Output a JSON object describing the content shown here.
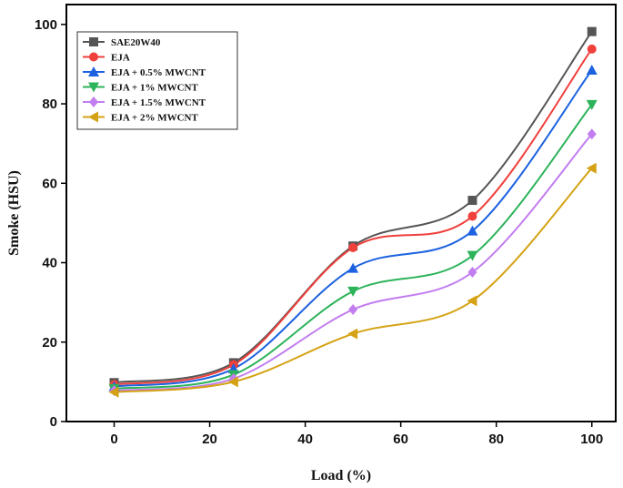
{
  "chart_data": {
    "type": "line",
    "xlabel": "Load (%)",
    "ylabel": "Smoke (HSU)",
    "xlim": [
      -10,
      105
    ],
    "ylim": [
      0,
      105
    ],
    "xticks": [
      0,
      20,
      40,
      60,
      80,
      100
    ],
    "yticks": [
      0,
      20,
      40,
      60,
      80,
      100
    ],
    "x": [
      0,
      25,
      50,
      75,
      100
    ],
    "legend_position": "top-left",
    "series": [
      {
        "name": "SAE20W40",
        "color": "#555555",
        "marker": "square",
        "values": [
          9.8,
          14.8,
          44.2,
          55.7,
          98.2
        ]
      },
      {
        "name": "EJA",
        "color": "#f0403c",
        "marker": "circle",
        "values": [
          9.3,
          14.3,
          43.8,
          51.7,
          93.8
        ]
      },
      {
        "name": "EJA +  0.5% MWCNT",
        "color": "#1c62e0",
        "marker": "triangle-up",
        "values": [
          8.8,
          13.3,
          38.6,
          48.0,
          88.5
        ]
      },
      {
        "name": "EJA + 1% MWCNT",
        "color": "#2db35a",
        "marker": "triangle-down",
        "values": [
          8.3,
          11.8,
          32.8,
          41.8,
          79.8
        ]
      },
      {
        "name": "EJA + 1.5% MWCNT",
        "color": "#c27df0",
        "marker": "diamond",
        "values": [
          7.8,
          10.8,
          28.2,
          37.6,
          72.4
        ]
      },
      {
        "name": "EJA + 2% MWCNT",
        "color": "#d4a214",
        "marker": "triangle-left",
        "values": [
          7.4,
          10.0,
          22.1,
          30.4,
          63.8
        ]
      }
    ]
  }
}
